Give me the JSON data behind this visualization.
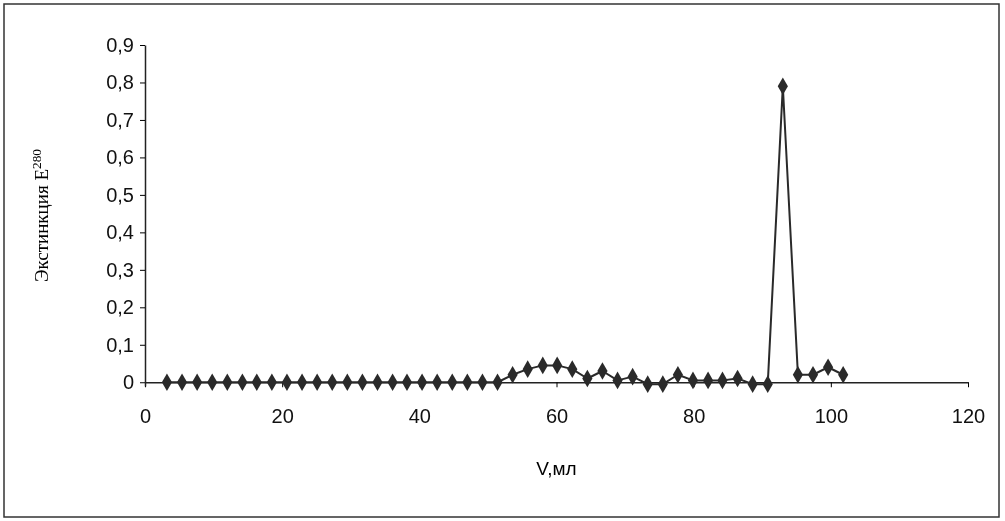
{
  "chart_data": {
    "type": "line",
    "xlabel": "V,мл",
    "ylabel": "Экстинкция E$^{280}$",
    "x": [
      3.2,
      5.4,
      7.6,
      9.8,
      12,
      14.2,
      16.3,
      18.5,
      20.7,
      22.9,
      25.1,
      27.3,
      29.5,
      31.7,
      33.9,
      36.1,
      38.2,
      40.4,
      42.6,
      44.8,
      47,
      49.2,
      51.4,
      53.6,
      55.8,
      58,
      60.1,
      62.3,
      64.5,
      66.7,
      68.9,
      71.1,
      73.3,
      75.5,
      77.7,
      79.9,
      82.1,
      84.2,
      86.4,
      88.6,
      90.8,
      93,
      95.2,
      97.4,
      99.6,
      101.8
    ],
    "series": [
      {
        "color": "#2a2a2a",
        "values": [
          0,
          0,
          0,
          0,
          0,
          0,
          0,
          0,
          0,
          0,
          0,
          0,
          0,
          0,
          0,
          0,
          0,
          0,
          0,
          0,
          0,
          0,
          0,
          0.02,
          0.035,
          0.045,
          0.045,
          0.035,
          0.01,
          0.03,
          0.005,
          0.015,
          -0.005,
          -0.005,
          0.02,
          0.005,
          0.005,
          0.005,
          0.01,
          -0.005,
          -0.005,
          0.79,
          0.02,
          0.02,
          0.04,
          0.02
        ]
      }
    ],
    "xlim": [
      0,
      120
    ],
    "xticks": [
      0,
      20,
      40,
      60,
      80,
      100,
      120
    ],
    "ylim": [
      -0.01,
      0.9
    ],
    "yticks": [
      {
        "value": 0,
        "label": "0"
      },
      {
        "value": 0.1,
        "label": "0,1"
      },
      {
        "value": 0.2,
        "label": "0,2"
      },
      {
        "value": 0.3,
        "label": "0,3"
      },
      {
        "value": 0.4,
        "label": "0,4"
      },
      {
        "value": 0.5,
        "label": "0,5"
      },
      {
        "value": 0.6,
        "label": "0,6"
      },
      {
        "value": 0.7,
        "label": "0,7"
      },
      {
        "value": 0.8,
        "label": "0,8"
      },
      {
        "value": 0.9,
        "label": "0,9"
      }
    ],
    "grid": false,
    "marker": "diamond",
    "line_style": "solid"
  }
}
